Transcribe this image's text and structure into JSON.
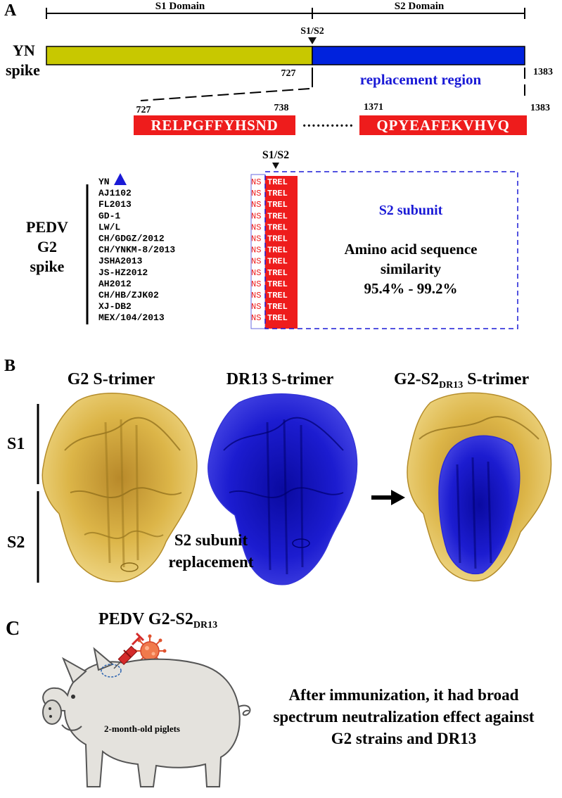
{
  "panel_a": {
    "label": "A",
    "domains": {
      "s1": "S1 Domain",
      "s2": "S2 Domain"
    },
    "cleavage": "S1/S2",
    "yn_line1": "YN",
    "yn_line2": "spike",
    "pos_727": "727",
    "pos_1383": "1383",
    "replacement_label": "replacement region",
    "zoom": {
      "pos_727": "727",
      "pos_738": "738",
      "pos_1371": "1371",
      "pos_1383": "1383",
      "seq_left": "RELPGFFYHSND",
      "dots": "···········",
      "seq_right": "QPYEAFEKVHVQ"
    },
    "align": {
      "cleavage": "S1/S2",
      "group_line1": "PEDV",
      "group_line2": "G2",
      "group_line3": "spike",
      "strains": [
        "YN",
        "AJ1102",
        "FL2013",
        "GD-1",
        "LW/L",
        "CH/GDGZ/2012",
        "CH/YNKM-8/2013",
        "JSHA2013",
        "JS-HZ2012",
        "AH2012",
        "CH/HB/ZJK02",
        "XJ-DB2",
        "MEX/104/2013"
      ],
      "prefix": "NS",
      "motif": "TREL",
      "s2_subunit": "S2 subunit",
      "sim_line1": "Amino acid sequence",
      "sim_line2": "similarity",
      "sim_line3": "95.4% - 99.2%"
    }
  },
  "panel_b": {
    "label": "B",
    "g2_title": "G2 S-trimer",
    "dr13_title": "DR13 S-trimer",
    "chim_main": "G2-S2",
    "chim_sub": "DR13",
    "chim_tail": " S-trimer",
    "s1": "S1",
    "s2": "S2",
    "repl_line1": "S2 subunit",
    "repl_line2": "replacement"
  },
  "panel_c": {
    "label": "C",
    "title_main": "PEDV G2-S2",
    "title_sub": "DR13",
    "pig_label": "2-month-old piglets",
    "result_line1": "After immunization, it had broad",
    "result_line2": "spectrum neutralization effect against",
    "result_line3": "G2 strains and DR13"
  },
  "colors": {
    "s1_bar": "#c8c800",
    "s2_bar": "#0022dd",
    "seq_red": "#ee1c1c",
    "text_blue": "#1a1ad6",
    "gold": "#e2bb4a",
    "blue_protein": "#1a1ad0",
    "pig": "#e4e2dd"
  }
}
